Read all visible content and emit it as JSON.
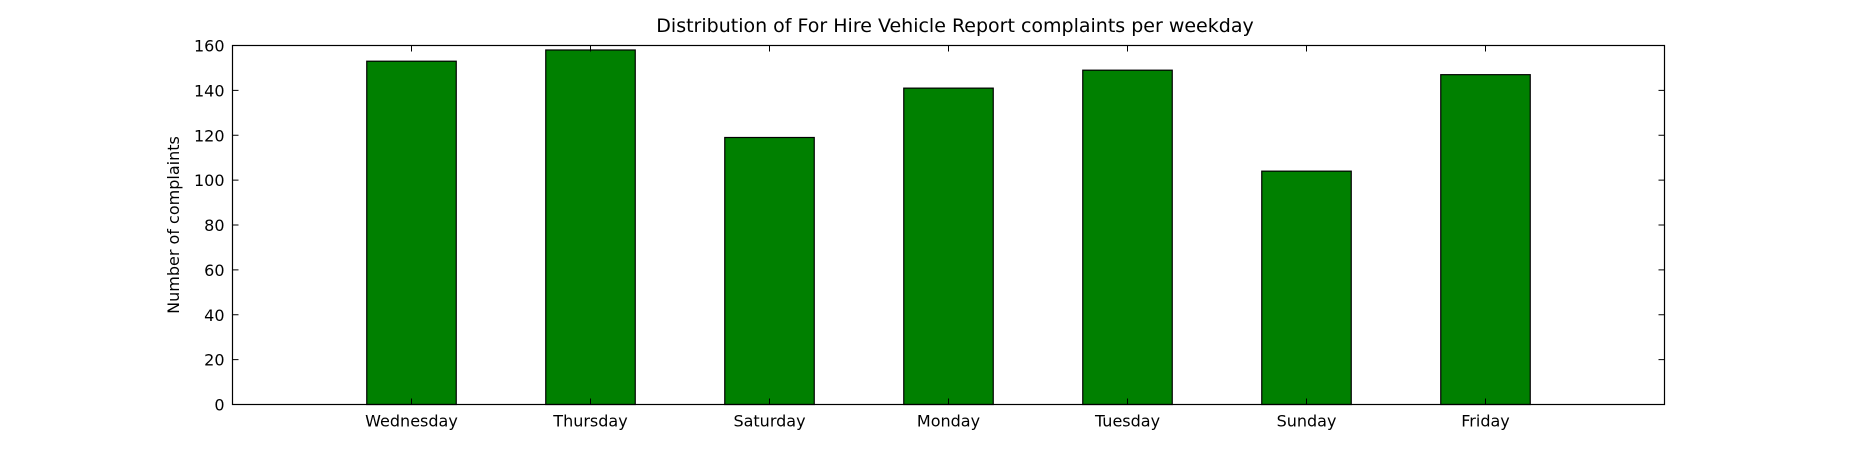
{
  "chart_data": {
    "type": "bar",
    "title": "Distribution of  For Hire Vehicle Report complaints per weekday",
    "xlabel": "",
    "ylabel": "Number of complaints",
    "categories": [
      "Wednesday",
      "Thursday",
      "Saturday",
      "Monday",
      "Tuesday",
      "Sunday",
      "Friday"
    ],
    "values": [
      153,
      158,
      119,
      141,
      149,
      104,
      147
    ],
    "ylim": [
      0,
      160
    ],
    "yticks": [
      0,
      20,
      40,
      60,
      80,
      100,
      120,
      140,
      160
    ],
    "ytick_labels": [
      "0",
      "20",
      "40",
      "60",
      "80",
      "100",
      "120",
      "140",
      "160"
    ],
    "xlim": [
      -1,
      7
    ],
    "grid": false,
    "legend": "none",
    "colors": {
      "bar_fill": "#008000",
      "bar_edge": "#000000",
      "axes": "#000000",
      "background": "#ffffff"
    }
  }
}
